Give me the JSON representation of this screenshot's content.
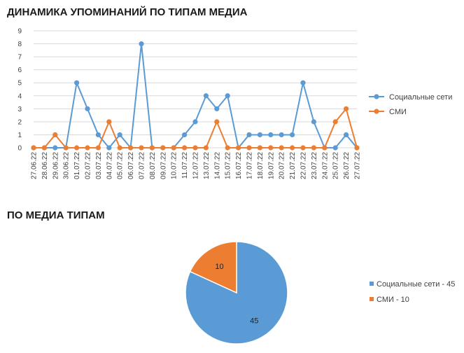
{
  "titles": {
    "line_chart": "ДИНАМИКА УПОМИНАНИЙ ПО ТИПАМ МЕДИА",
    "pie_chart": "ПО МЕДИА ТИПАМ"
  },
  "colors": {
    "social": "#5b9bd5",
    "media": "#ed7d31",
    "grid": "#d9d9d9"
  },
  "chart_data": [
    {
      "type": "line",
      "title": "ДИНАМИКА УПОМИНАНИЙ ПО ТИПАМ МЕДИА",
      "categories": [
        "27.06.22",
        "28.06.22",
        "29.06.22",
        "30.06.22",
        "01.07.22",
        "02.07.22",
        "03.07.22",
        "04.07.22",
        "05.07.22",
        "06.07.22",
        "07.07.22",
        "08.07.22",
        "09.07.22",
        "10.07.22",
        "11.07.22",
        "12.07.22",
        "13.07.22",
        "14.07.22",
        "15.07.22",
        "16.07.22",
        "17.07.22",
        "18.07.22",
        "19.07.22",
        "20.07.22",
        "21.07.22",
        "22.07.22",
        "23.07.22",
        "24.07.22",
        "25.07.22",
        "26.07.22",
        "27.07.22"
      ],
      "series": [
        {
          "name": "Социальные сети",
          "values": [
            0,
            0,
            0,
            0,
            5,
            3,
            1,
            0,
            1,
            0,
            8,
            0,
            0,
            0,
            1,
            2,
            4,
            3,
            4,
            0,
            1,
            1,
            1,
            1,
            1,
            5,
            2,
            0,
            0,
            1,
            0
          ]
        },
        {
          "name": "СМИ",
          "values": [
            0,
            0,
            1,
            0,
            0,
            0,
            0,
            2,
            0,
            0,
            0,
            0,
            0,
            0,
            0,
            0,
            0,
            2,
            0,
            0,
            0,
            0,
            0,
            0,
            0,
            0,
            0,
            0,
            2,
            3,
            0
          ]
        }
      ],
      "ylim": [
        0,
        9
      ],
      "yticks": [
        "0",
        "1",
        "2",
        "3",
        "4",
        "5",
        "6",
        "7",
        "8",
        "9"
      ],
      "grid": true,
      "legend": "right"
    },
    {
      "type": "pie",
      "title": "ПО МЕДИА ТИПАМ",
      "slices": [
        {
          "name": "Социальные сети",
          "value": 45,
          "label": "45",
          "legend": "Социальные сети - 45"
        },
        {
          "name": "СМИ",
          "value": 10,
          "label": "10",
          "legend": "СМИ - 10"
        }
      ],
      "legend": "right"
    }
  ]
}
